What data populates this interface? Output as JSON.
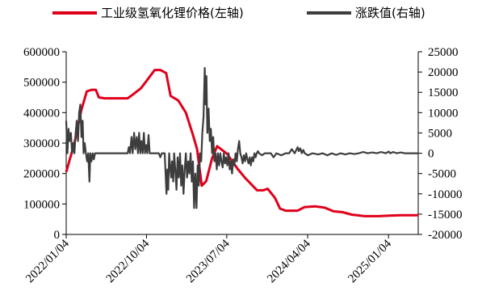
{
  "chart_data": {
    "type": "line",
    "title": "",
    "legend": {
      "placement": "top",
      "entries": [
        "工业级氢氧化锂价格(左轴)",
        "涨跌值(右轴)"
      ]
    },
    "x": {
      "labels": [
        "2022/01/04",
        "2022/10/04",
        "2023/07/04",
        "2024/04/04",
        "2025/01/04"
      ],
      "range": [
        "2022/01/04",
        "2025/04/15"
      ]
    },
    "y_left": {
      "min": 0,
      "max": 600000,
      "ticks": [
        "0",
        "100000",
        "200000",
        "300000",
        "400000",
        "500000",
        "600000"
      ]
    },
    "y_right": {
      "min": -20000,
      "max": 25000,
      "ticks": [
        "-20000",
        "-15000",
        "-10000",
        "-5000",
        "0",
        "5000",
        "10000",
        "15000",
        "20000",
        "25000"
      ]
    },
    "series": [
      {
        "name": "工业级氢氧化锂价格(左轴)",
        "color": "#e0001b",
        "axis": "left",
        "points": [
          [
            "2022/01/04",
            205000
          ],
          [
            "2022/02/01",
            300000
          ],
          [
            "2022/02/25",
            410000
          ],
          [
            "2022/03/15",
            470000
          ],
          [
            "2022/04/01",
            475000
          ],
          [
            "2022/04/15",
            475000
          ],
          [
            "2022/04/25",
            450000
          ],
          [
            "2022/05/15",
            447000
          ],
          [
            "2022/08/01",
            447000
          ],
          [
            "2022/08/20",
            460000
          ],
          [
            "2022/09/15",
            480000
          ],
          [
            "2022/10/01",
            500000
          ],
          [
            "2022/10/20",
            525000
          ],
          [
            "2022/11/01",
            540000
          ],
          [
            "2022/11/20",
            540000
          ],
          [
            "2022/12/10",
            530000
          ],
          [
            "2022/12/25",
            455000
          ],
          [
            "2023/01/20",
            440000
          ],
          [
            "2023/02/15",
            400000
          ],
          [
            "2023/03/10",
            330000
          ],
          [
            "2023/03/25",
            280000
          ],
          [
            "2023/04/10",
            160000
          ],
          [
            "2023/04/25",
            175000
          ],
          [
            "2023/05/15",
            250000
          ],
          [
            "2023/06/01",
            290000
          ],
          [
            "2023/07/05",
            265000
          ],
          [
            "2023/08/10",
            215000
          ],
          [
            "2023/09/05",
            185000
          ],
          [
            "2023/09/25",
            165000
          ],
          [
            "2023/10/15",
            145000
          ],
          [
            "2023/11/05",
            145000
          ],
          [
            "2023/11/20",
            150000
          ],
          [
            "2023/12/15",
            120000
          ],
          [
            "2024/01/01",
            85000
          ],
          [
            "2024/01/20",
            78000
          ],
          [
            "2024/03/01",
            78000
          ],
          [
            "2024/03/25",
            90000
          ],
          [
            "2024/05/01",
            92000
          ],
          [
            "2024/06/01",
            88000
          ],
          [
            "2024/07/01",
            76000
          ],
          [
            "2024/08/01",
            73000
          ],
          [
            "2024/09/01",
            65000
          ],
          [
            "2024/10/15",
            60000
          ],
          [
            "2024/12/01",
            60000
          ],
          [
            "2025/01/15",
            62000
          ],
          [
            "2025/02/15",
            63000
          ],
          [
            "2025/04/15",
            63000
          ]
        ]
      },
      {
        "name": "涨跌值(右轴)",
        "color": "#3d3d3d",
        "axis": "right",
        "points": [
          [
            "2022/01/04",
            8000
          ],
          [
            "2022/01/08",
            0
          ],
          [
            "2022/01/12",
            6000
          ],
          [
            "2022/01/15",
            3000
          ],
          [
            "2022/01/20",
            5000
          ],
          [
            "2022/01/24",
            0
          ],
          [
            "2022/01/28",
            2500
          ],
          [
            "2022/02/01",
            0
          ],
          [
            "2022/02/05",
            5000
          ],
          [
            "2022/02/09",
            8000
          ],
          [
            "2022/02/13",
            3000
          ],
          [
            "2022/02/17",
            10000
          ],
          [
            "2022/02/21",
            12000
          ],
          [
            "2022/02/25",
            4000
          ],
          [
            "2022/03/01",
            8000
          ],
          [
            "2022/03/04",
            0
          ],
          [
            "2022/03/08",
            2500
          ],
          [
            "2022/03/12",
            0
          ],
          [
            "2022/03/16",
            -2000
          ],
          [
            "2022/03/20",
            0
          ],
          [
            "2022/03/24",
            -7000
          ],
          [
            "2022/03/27",
            0
          ],
          [
            "2022/03/31",
            -2000
          ],
          [
            "2022/04/04",
            0
          ],
          [
            "2022/04/08",
            -1500
          ],
          [
            "2022/04/12",
            0
          ],
          [
            "2022/06/15",
            0
          ],
          [
            "2022/08/01",
            0
          ],
          [
            "2022/08/05",
            1500
          ],
          [
            "2022/08/09",
            0
          ],
          [
            "2022/08/14",
            4000
          ],
          [
            "2022/08/18",
            0
          ],
          [
            "2022/08/23",
            5000
          ],
          [
            "2022/08/27",
            1000
          ],
          [
            "2022/09/01",
            4000
          ],
          [
            "2022/09/05",
            0
          ],
          [
            "2022/09/09",
            5000
          ],
          [
            "2022/09/13",
            0
          ],
          [
            "2022/09/17",
            3000
          ],
          [
            "2022/09/21",
            0
          ],
          [
            "2022/09/25",
            5000
          ],
          [
            "2022/09/29",
            0
          ],
          [
            "2022/10/03",
            2000
          ],
          [
            "2022/10/07",
            0
          ],
          [
            "2022/10/11",
            4500
          ],
          [
            "2022/10/15",
            0
          ],
          [
            "2022/11/15",
            0
          ],
          [
            "2022/11/20",
            -1000
          ],
          [
            "2022/11/25",
            0
          ],
          [
            "2022/12/05",
            0
          ],
          [
            "2022/12/08",
            -5000
          ],
          [
            "2022/12/11",
            -10000
          ],
          [
            "2022/12/14",
            -4000
          ],
          [
            "2022/12/17",
            -9000
          ],
          [
            "2022/12/20",
            0
          ],
          [
            "2022/12/23",
            -3000
          ],
          [
            "2022/12/27",
            -6000
          ],
          [
            "2022/12/30",
            -2000
          ],
          [
            "2023/01/03",
            -7000
          ],
          [
            "2023/01/06",
            0
          ],
          [
            "2023/01/10",
            -4000
          ],
          [
            "2023/01/14",
            -9000
          ],
          [
            "2023/01/18",
            -1000
          ],
          [
            "2023/01/22",
            -6000
          ],
          [
            "2023/01/26",
            0
          ],
          [
            "2023/01/30",
            -8000
          ],
          [
            "2023/02/03",
            -3000
          ],
          [
            "2023/02/07",
            -10000
          ],
          [
            "2023/02/11",
            -4000
          ],
          [
            "2023/02/15",
            0
          ],
          [
            "2023/02/19",
            -6000
          ],
          [
            "2023/02/23",
            -2000
          ],
          [
            "2023/02/27",
            -5000
          ],
          [
            "2023/03/03",
            0
          ],
          [
            "2023/03/07",
            -7000
          ],
          [
            "2023/03/11",
            -2000
          ],
          [
            "2023/03/15",
            -13500
          ],
          [
            "2023/03/19",
            -5000
          ],
          [
            "2023/03/23",
            -13500
          ],
          [
            "2023/03/27",
            -3000
          ],
          [
            "2023/03/31",
            -8000
          ],
          [
            "2023/04/04",
            0
          ],
          [
            "2023/04/08",
            -2000
          ],
          [
            "2023/04/12",
            5000
          ],
          [
            "2023/04/16",
            9000
          ],
          [
            "2023/04/20",
            21000
          ],
          [
            "2023/04/23",
            12000
          ],
          [
            "2023/04/26",
            19000
          ],
          [
            "2023/04/29",
            5000
          ],
          [
            "2023/05/03",
            11000
          ],
          [
            "2023/05/07",
            3000
          ],
          [
            "2023/05/11",
            6000
          ],
          [
            "2023/05/15",
            0
          ],
          [
            "2023/05/19",
            4000
          ],
          [
            "2023/05/23",
            -2000
          ],
          [
            "2023/05/27",
            0
          ],
          [
            "2023/05/31",
            -4000
          ],
          [
            "2023/06/04",
            0
          ],
          [
            "2023/06/08",
            -3000
          ],
          [
            "2023/06/12",
            0
          ],
          [
            "2023/06/16",
            -2000
          ],
          [
            "2023/06/20",
            -3500
          ],
          [
            "2023/06/24",
            0
          ],
          [
            "2023/06/28",
            -2500
          ],
          [
            "2023/07/02",
            -1000
          ],
          [
            "2023/07/06",
            -3000
          ],
          [
            "2023/07/10",
            0
          ],
          [
            "2023/07/14",
            -4000
          ],
          [
            "2023/07/18",
            -2000
          ],
          [
            "2023/07/22",
            -5000
          ],
          [
            "2023/07/26",
            -1500
          ],
          [
            "2023/07/30",
            -3000
          ],
          [
            "2023/08/03",
            0
          ],
          [
            "2023/08/07",
            -2000
          ],
          [
            "2023/08/11",
            1000
          ],
          [
            "2023/08/15",
            3000
          ],
          [
            "2023/08/19",
            0
          ],
          [
            "2023/08/23",
            -1000
          ],
          [
            "2023/08/27",
            -2500
          ],
          [
            "2023/08/31",
            -500
          ],
          [
            "2023/09/04",
            -2000
          ],
          [
            "2023/09/08",
            0
          ],
          [
            "2023/09/12",
            -1500
          ],
          [
            "2023/09/16",
            -2500
          ],
          [
            "2023/09/20",
            -1000
          ],
          [
            "2023/09/24",
            -3000
          ],
          [
            "2023/09/28",
            -1000
          ],
          [
            "2023/10/02",
            -2000
          ],
          [
            "2023/10/06",
            0
          ],
          [
            "2023/10/10",
            -1000
          ],
          [
            "2023/10/14",
            0
          ],
          [
            "2023/10/18",
            500
          ],
          [
            "2023/10/22",
            0
          ],
          [
            "2023/11/01",
            -500
          ],
          [
            "2023/11/10",
            0
          ],
          [
            "2023/12/01",
            0
          ],
          [
            "2023/12/10",
            -1000
          ],
          [
            "2023/12/20",
            0
          ],
          [
            "2024/01/05",
            -500
          ],
          [
            "2024/01/20",
            0
          ],
          [
            "2024/02/01",
            0
          ],
          [
            "2024/02/10",
            1000
          ],
          [
            "2024/02/20",
            0
          ],
          [
            "2024/03/01",
            1500
          ],
          [
            "2024/03/05",
            500
          ],
          [
            "2024/03/10",
            1200
          ],
          [
            "2024/03/15",
            0
          ],
          [
            "2024/03/20",
            800
          ],
          [
            "2024/03/25",
            0
          ],
          [
            "2024/04/05",
            -500
          ],
          [
            "2024/04/20",
            0
          ],
          [
            "2024/05/10",
            -300
          ],
          [
            "2024/05/25",
            0
          ],
          [
            "2024/06/10",
            -500
          ],
          [
            "2024/06/25",
            0
          ],
          [
            "2024/07/10",
            -400
          ],
          [
            "2024/07/25",
            0
          ],
          [
            "2024/08/10",
            -300
          ],
          [
            "2024/08/25",
            0
          ],
          [
            "2024/09/10",
            -200
          ],
          [
            "2024/09/25",
            0
          ],
          [
            "2024/10/10",
            300
          ],
          [
            "2024/10/25",
            0
          ],
          [
            "2024/11/10",
            200
          ],
          [
            "2024/11/25",
            0
          ],
          [
            "2024/12/10",
            300
          ],
          [
            "2024/12/25",
            0
          ],
          [
            "2025/01/05",
            400
          ],
          [
            "2025/01/10",
            0
          ],
          [
            "2025/01/20",
            300
          ],
          [
            "2025/02/01",
            0
          ],
          [
            "2025/02/15",
            200
          ],
          [
            "2025/02/28",
            0
          ],
          [
            "2025/03/15",
            0
          ],
          [
            "2025/04/15",
            0
          ]
        ]
      }
    ]
  }
}
